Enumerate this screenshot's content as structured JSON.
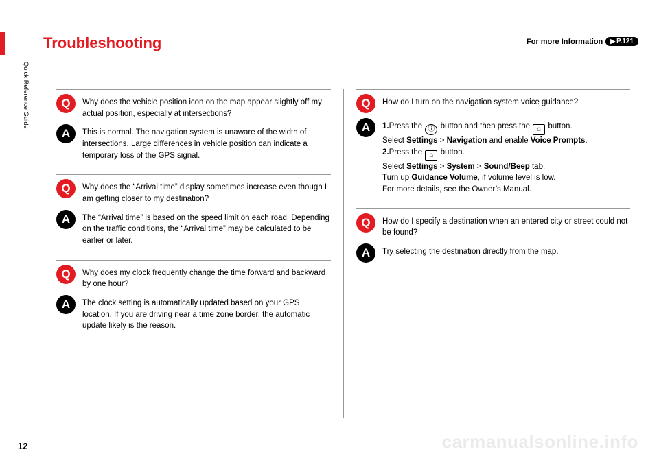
{
  "page": {
    "title": "Troubleshooting",
    "more_info_label": "For more Information",
    "more_info_ref": "P.121",
    "side_tab": "Quick Reference Guide",
    "page_number": "12",
    "watermark": "carmanualsonline.info"
  },
  "left": [
    {
      "q": "Why does the vehicle position icon on the map appear slightly off my actual position, especially at intersections?",
      "a": "This is normal. The navigation system is unaware of the width of intersections. Large differences in vehicle position can indicate a temporary loss of the GPS signal."
    },
    {
      "q": "Why does the “Arrival time” display sometimes increase even though I am getting closer to my destination?",
      "a": "The “Arrival time” is based on the speed limit on each road. Depending on the traffic conditions, the “Arrival time” may be calculated to be earlier or later."
    },
    {
      "q": "Why does my clock frequently change the time forward and backward by one hour?",
      "a": "The clock setting is automatically updated based on your GPS location. If you are driving near a time zone border, the automatic update likely is the reason."
    }
  ],
  "right": [
    {
      "q": "How do I turn on the navigation system voice guidance?",
      "a_steps": {
        "s1_prefix": "Press the ",
        "s1_mid": " button and then press the ",
        "s1_suffix": " button.",
        "s1_line2a": "Select ",
        "s1_b1": "Settings",
        "s1_gt1": " > ",
        "s1_b2": "Navigation",
        "s1_mid2": " and enable ",
        "s1_b3": "Voice Prompts",
        "s1_end": ".",
        "s2_prefix": "Press the ",
        "s2_suffix": " button.",
        "s2_line2a": "Select ",
        "s2_b1": "Settings",
        "s2_gt1": " > ",
        "s2_b2": "System",
        "s2_gt2": " > ",
        "s2_b3": "Sound/Beep",
        "s2_tab": " tab.",
        "s2_line3a": "Turn up ",
        "s2_b4": "Guidance Volume",
        "s2_line3b": ", if volume level is low.",
        "s2_line4": "For more details, see the Owner’s Manual."
      }
    },
    {
      "q": "How do I specify a destination when an entered city or street could not be found?",
      "a": "Try selecting the destination directly from the map."
    }
  ],
  "labels": {
    "q": "Q",
    "a": "A",
    "step1": "1.",
    "step2": "2."
  }
}
